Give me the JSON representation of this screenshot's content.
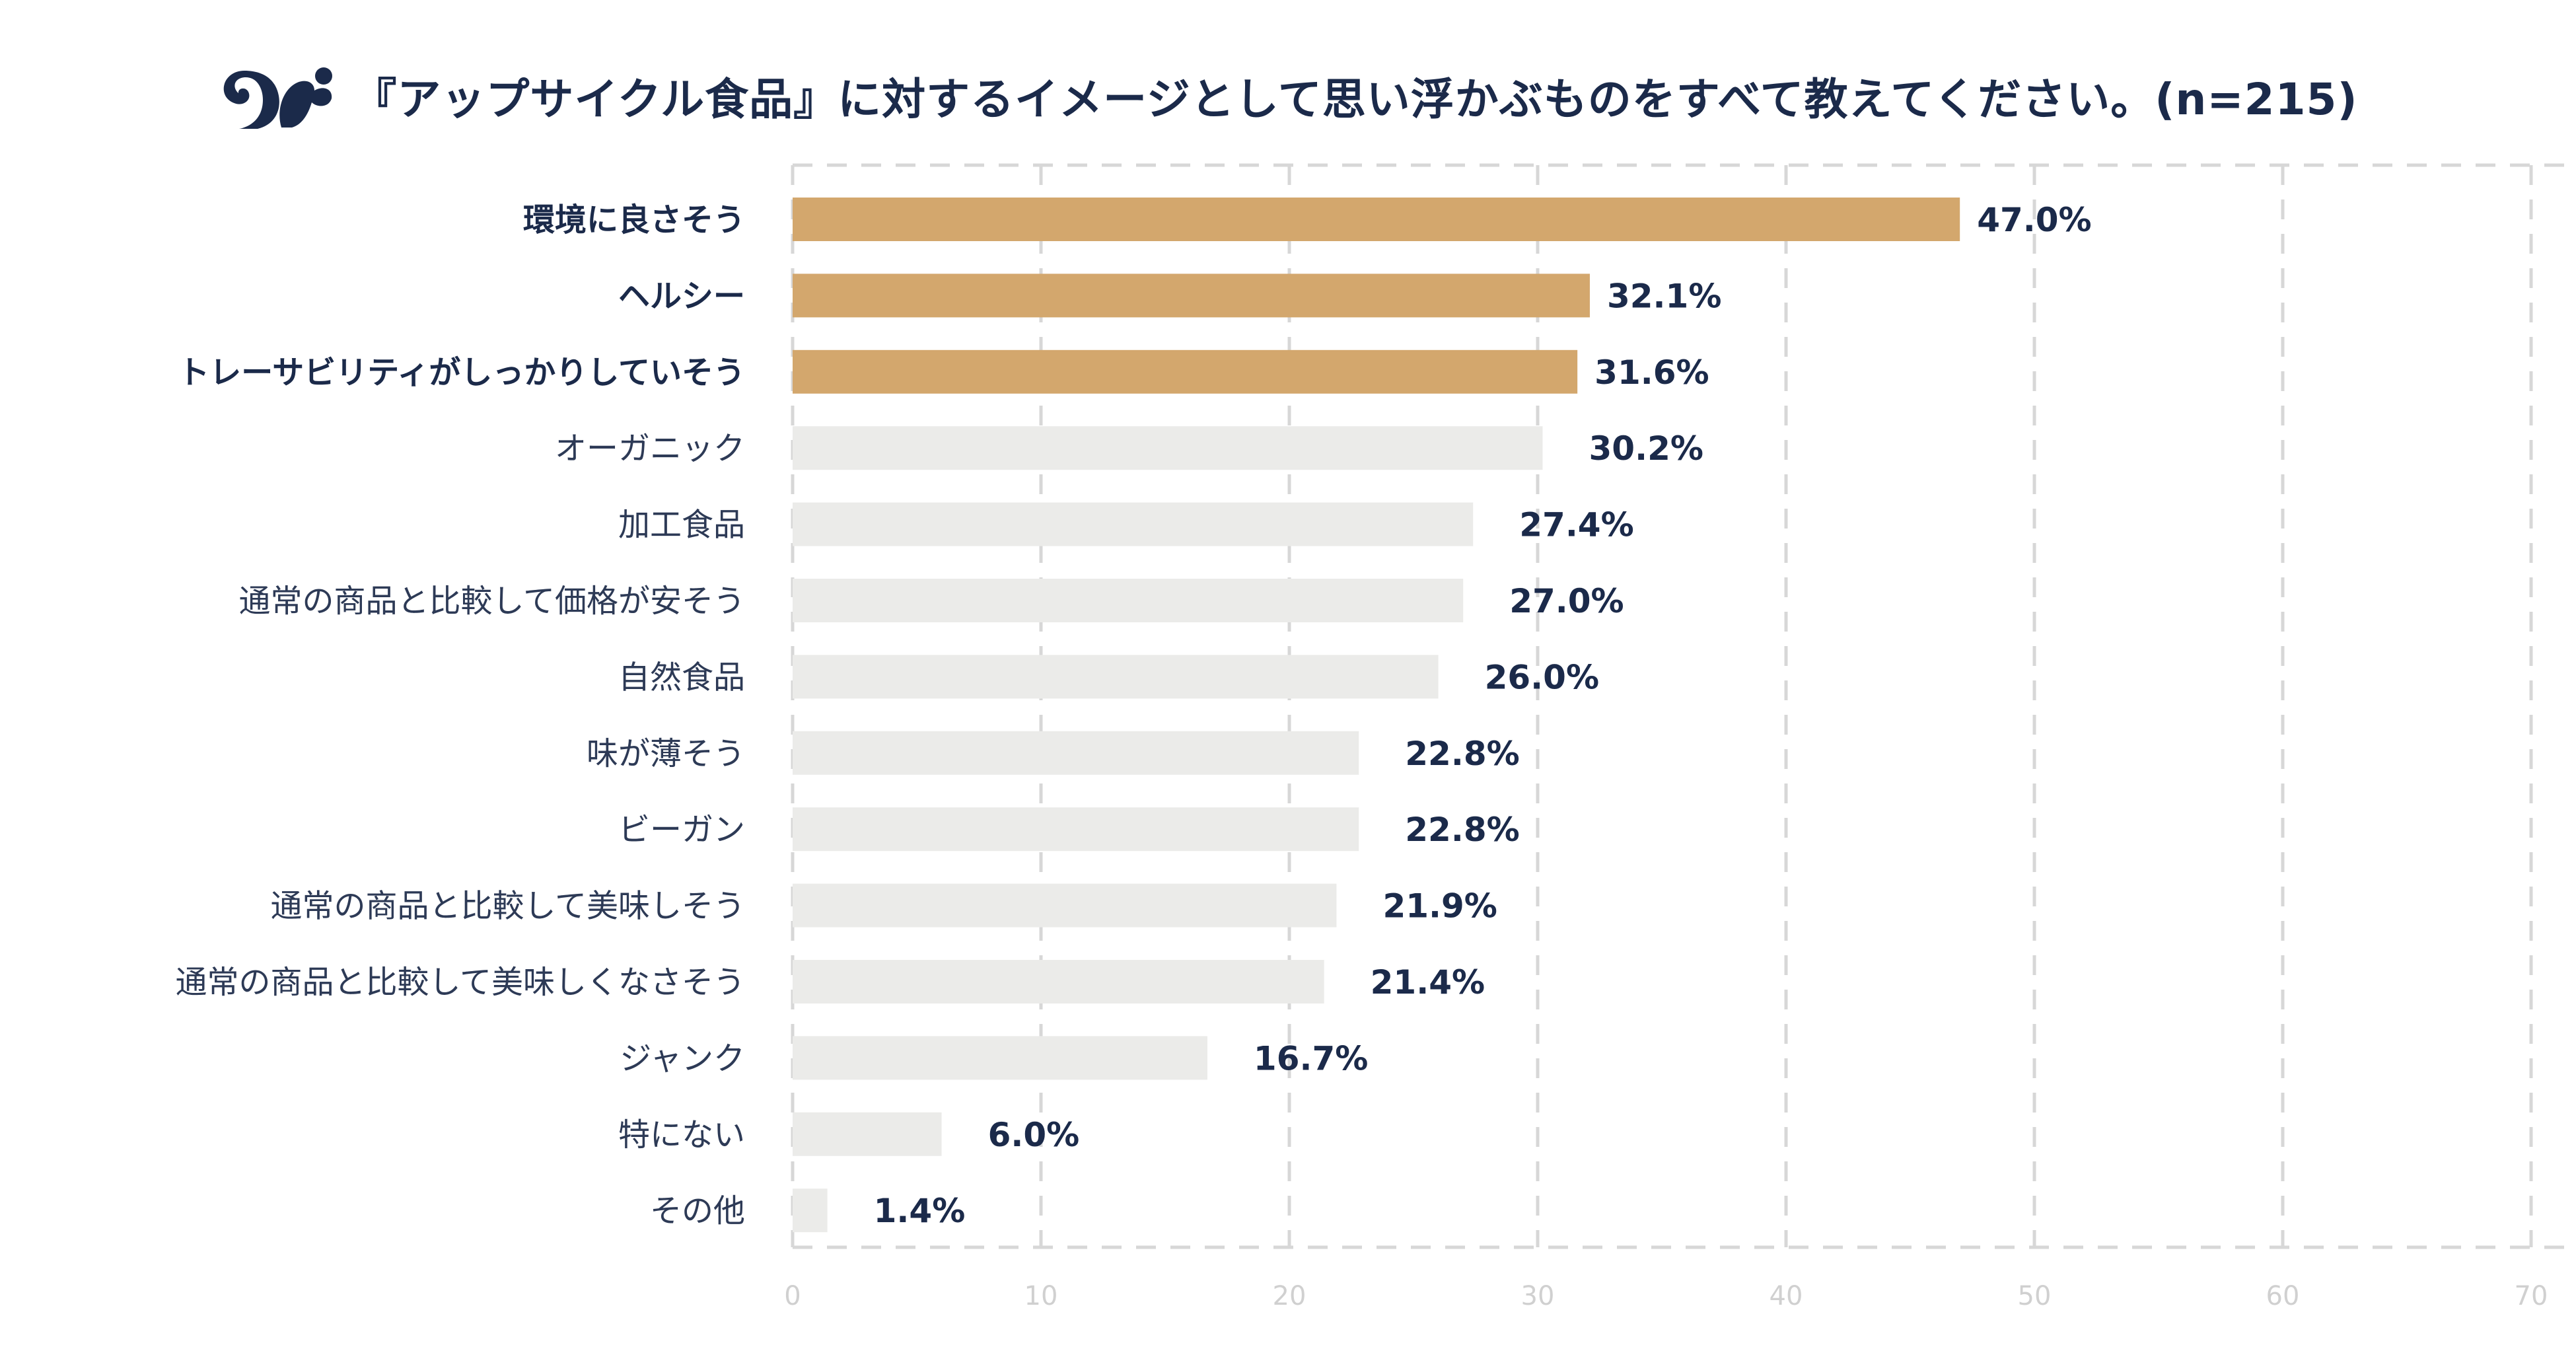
{
  "title": "『アップサイクル食品』に対するイメージとして思い浮かぶものをすべて教えてください。(n=215)",
  "logo": {
    "icon": "squirrel-logo",
    "color": "#1b2a4a"
  },
  "colors": {
    "highlight": "#d3a76d",
    "bar": "#ebebe9",
    "text_dark": "#1b2a4a",
    "text_normal": "#2d3a56",
    "grid": "#d7d7d7",
    "tick": "#d0d0d0"
  },
  "chart_data": {
    "type": "bar",
    "orientation": "horizontal",
    "title": "『アップサイクル食品』に対するイメージとして思い浮かぶものをすべて教えてください。(n=215)",
    "xlabel": "",
    "ylabel": "",
    "xlim": [
      0,
      70
    ],
    "xticks": [
      0,
      10,
      20,
      30,
      40,
      50,
      60,
      70
    ],
    "grid": "vertical-dashed",
    "unit": "%",
    "categories": [
      "環境に良さそう",
      "ヘルシー",
      "トレーサビリティがしっかりしていそう",
      "オーガニック",
      "加工食品",
      "通常の商品と比較して価格が安そう",
      "自然食品",
      "味が薄そう",
      "ビーガン",
      "通常の商品と比較して美味しそう",
      "通常の商品と比較して美味しくなさそう",
      "ジャンク",
      "特にない",
      "その他"
    ],
    "values": [
      47.0,
      32.1,
      31.6,
      30.2,
      27.4,
      27.0,
      26.0,
      22.8,
      22.8,
      21.9,
      21.4,
      16.7,
      6.0,
      1.4
    ],
    "value_labels": [
      "47.0%",
      "32.1%",
      "31.6%",
      "30.2%",
      "27.4%",
      "27.0%",
      "26.0%",
      "22.8%",
      "22.8%",
      "21.9%",
      "21.4%",
      "16.7%",
      "6.0%",
      "1.4%"
    ],
    "highlighted": [
      true,
      true,
      true,
      false,
      false,
      false,
      false,
      false,
      false,
      false,
      false,
      false,
      false,
      false
    ]
  }
}
